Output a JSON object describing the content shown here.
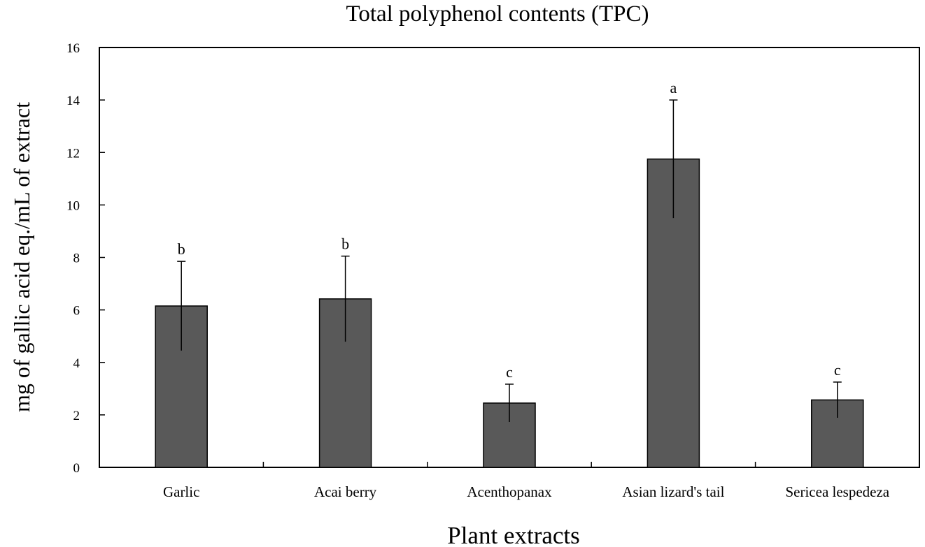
{
  "chart_data": {
    "type": "bar",
    "title": "Total polyphenol contents (TPC)",
    "xlabel": "Plant extracts",
    "ylabel": "mg of gallic acid eq./mL of extract",
    "categories": [
      "Garlic",
      "Acai berry",
      "Acenthopanax",
      "Asian lizard's tail",
      "Sericea lespedeza"
    ],
    "values": [
      6.15,
      6.42,
      2.45,
      11.75,
      2.57
    ],
    "errors": [
      1.7,
      1.63,
      0.72,
      2.25,
      0.68
    ],
    "significance_labels": [
      "b",
      "b",
      "c",
      "a",
      "c"
    ],
    "ylim": [
      0,
      16
    ],
    "yticks": [
      0,
      2,
      4,
      6,
      8,
      10,
      12,
      14,
      16
    ],
    "grid": false,
    "bar_color": "#595959"
  }
}
